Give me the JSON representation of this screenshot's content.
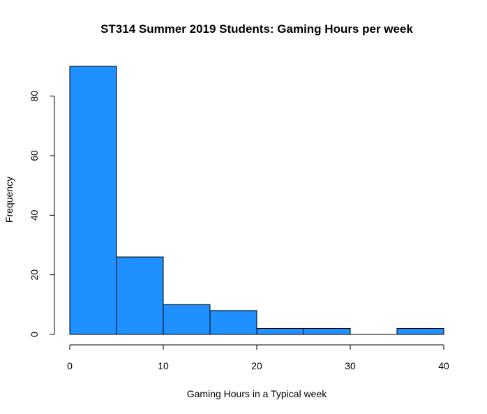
{
  "chart_data": {
    "type": "bar",
    "title": "ST314 Summer 2019 Students: Gaming Hours per week",
    "xlabel": "Gaming Hours in a Typical week",
    "ylabel": "Frequency",
    "bins": [
      [
        0,
        5
      ],
      [
        5,
        10
      ],
      [
        10,
        15
      ],
      [
        15,
        20
      ],
      [
        20,
        25
      ],
      [
        25,
        30
      ],
      [
        30,
        35
      ],
      [
        35,
        40
      ]
    ],
    "values": [
      90,
      26,
      10,
      8,
      2,
      2,
      0,
      2
    ],
    "xlim": [
      0,
      40
    ],
    "ylim": [
      0,
      90
    ],
    "xticks": [
      0,
      10,
      20,
      30,
      40
    ],
    "yticks": [
      0,
      20,
      40,
      60,
      80
    ],
    "bar_color": "#1E90FF",
    "grid": false
  }
}
